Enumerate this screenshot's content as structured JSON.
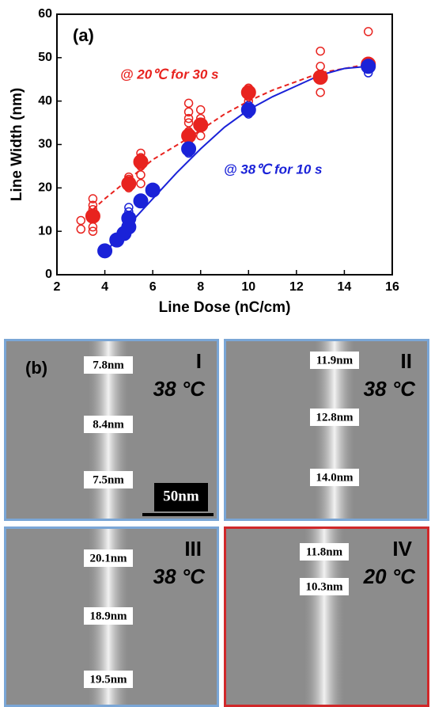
{
  "chart_data": {
    "type": "scatter",
    "panel_label": "(a)",
    "x_label": "Line Dose (nC/cm)",
    "y_label": "Line Width (nm)",
    "xlim": [
      2,
      16
    ],
    "xticks": [
      2,
      4,
      6,
      8,
      10,
      12,
      14,
      16
    ],
    "ylim": [
      0,
      60
    ],
    "yticks": [
      0,
      10,
      20,
      30,
      40,
      50,
      60
    ],
    "annotations": [
      {
        "text": "@ 20℃ for 30 s",
        "color": "#e8231f"
      },
      {
        "text": "@ 38℃ for 10 s",
        "color": "#1a22d8"
      }
    ],
    "series": [
      {
        "color": "#e8231f",
        "marker": "open",
        "x": [
          3,
          3,
          3.5,
          3.5,
          3.5,
          3.5,
          3.5,
          3.5,
          5,
          5,
          5,
          5,
          5.5,
          5.5,
          5.5,
          5.5,
          5.5,
          7.5,
          7.5,
          7.5,
          7.5,
          7.5,
          7.5,
          8,
          8,
          8,
          8,
          10,
          10,
          10,
          13,
          13,
          13,
          13,
          15,
          15,
          15
        ],
        "values": [
          10.5,
          12.5,
          10,
          11,
          13,
          15,
          16,
          17.5,
          20,
          21,
          22,
          22.5,
          21,
          23,
          25,
          27,
          28,
          30,
          33,
          35,
          36,
          37.5,
          39.5,
          32,
          34,
          36,
          38,
          40,
          41,
          43,
          42,
          45,
          48,
          51.5,
          48,
          49,
          56
        ]
      },
      {
        "color": "#1a22d8",
        "marker": "open",
        "x": [
          5,
          5,
          7.5,
          7.5,
          10,
          10,
          10,
          15,
          15,
          15
        ],
        "values": [
          14.5,
          15.5,
          28,
          30,
          37,
          37.5,
          39,
          46.5,
          47.5,
          49
        ]
      },
      {
        "color": "#e8231f",
        "marker": "none",
        "dashed": true,
        "x": [
          3.5,
          4,
          5,
          6,
          7.5,
          9,
          10,
          11,
          12,
          13,
          14,
          15
        ],
        "values": [
          15,
          17.5,
          22,
          26.5,
          31.5,
          37,
          40,
          42.5,
          44.5,
          46.5,
          47.5,
          48.5
        ]
      },
      {
        "color": "#1a22d8",
        "marker": "none",
        "dashed": false,
        "x": [
          4,
          5,
          6,
          7,
          8,
          9,
          10,
          11,
          12,
          13,
          14,
          15
        ],
        "values": [
          5,
          11.5,
          17.5,
          23.5,
          29,
          34,
          38,
          41,
          43.5,
          46,
          47.5,
          48
        ]
      },
      {
        "color": "#e8231f",
        "marker": "filled",
        "x": [
          3.5,
          5,
          5.5,
          7.5,
          8,
          10,
          13,
          15
        ],
        "values": [
          13.5,
          21,
          26,
          32,
          34.5,
          42,
          45.5,
          48.5
        ]
      },
      {
        "color": "#1a22d8",
        "marker": "filled",
        "x": [
          4,
          4.5,
          4.8,
          5,
          5,
          5.5,
          6,
          7.5,
          10,
          15
        ],
        "values": [
          5.5,
          8,
          9.5,
          11,
          13,
          17,
          19.5,
          29,
          38,
          48
        ]
      }
    ]
  },
  "images": {
    "panel_label": "(b)",
    "scale_bar": "50nm",
    "panels": [
      {
        "numeral": "I",
        "temperature": "38 °C",
        "border": "#7aa6d6",
        "measurements": [
          "7.8nm",
          "8.4nm",
          "7.5nm"
        ]
      },
      {
        "numeral": "II",
        "temperature": "38 °C",
        "border": "#7aa6d6",
        "measurements": [
          "11.9nm",
          "12.8nm",
          "14.0nm"
        ]
      },
      {
        "numeral": "III",
        "temperature": "38 °C",
        "border": "#7aa6d6",
        "measurements": [
          "20.1nm",
          "18.9nm",
          "19.5nm"
        ]
      },
      {
        "numeral": "IV",
        "temperature": "20 °C",
        "border": "#d0282a",
        "measurements": [
          "11.8nm",
          "10.3nm"
        ]
      }
    ]
  }
}
